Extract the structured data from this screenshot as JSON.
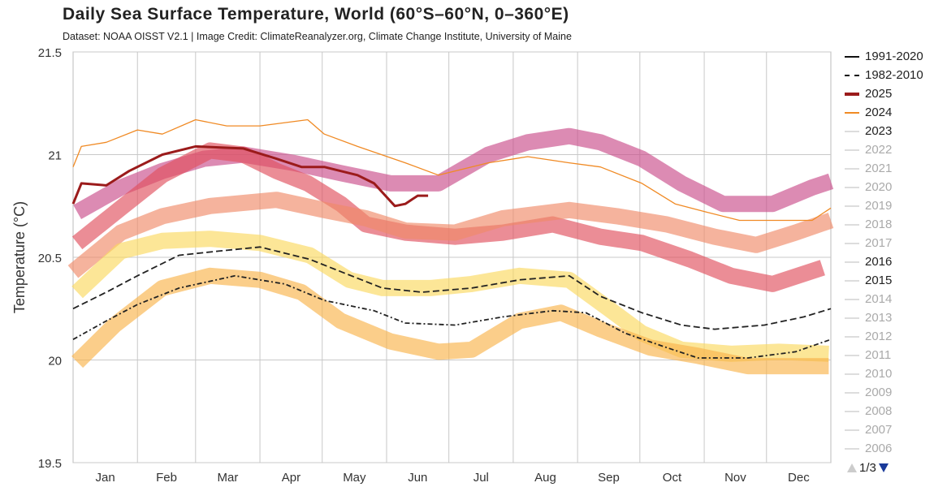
{
  "chart_data": {
    "type": "line",
    "title": "Daily Sea Surface Temperature, World (60°S–60°N, 0–360°E)",
    "subtitle": "Dataset: NOAA OISST V2.1 | Image Credit: ClimateReanalyzer.org, Climate Change Institute, University of Maine",
    "xlabel": "",
    "ylabel": "Temperature (°C)",
    "xlim": [
      0,
      365
    ],
    "ylim": [
      19.5,
      21.5
    ],
    "yticks": [
      "21.5",
      "21",
      "20.5",
      "20",
      "19.5"
    ],
    "ytick_values": [
      21.5,
      21,
      20.5,
      20,
      19.5
    ],
    "months": [
      "Jan",
      "Feb",
      "Mar",
      "Apr",
      "May",
      "Jun",
      "Jul",
      "Aug",
      "Sep",
      "Oct",
      "Nov",
      "Dec"
    ],
    "grid": true,
    "legend_position": "right",
    "series": [
      {
        "name": "2025",
        "color": "#9b1b1b",
        "width": 3,
        "dash": "",
        "points": [
          [
            0,
            20.76
          ],
          [
            4,
            20.86
          ],
          [
            16,
            20.85
          ],
          [
            27,
            20.92
          ],
          [
            43,
            21.0
          ],
          [
            59,
            21.04
          ],
          [
            82,
            21.03
          ],
          [
            98,
            20.98
          ],
          [
            110,
            20.94
          ],
          [
            121,
            20.94
          ],
          [
            137,
            20.9
          ],
          [
            145,
            20.86
          ],
          [
            155,
            20.75
          ],
          [
            160,
            20.76
          ],
          [
            166,
            20.8
          ],
          [
            171,
            20.8
          ]
        ]
      },
      {
        "name": "2024",
        "color": "#f08a24",
        "width": 1.3,
        "dash": "",
        "points": [
          [
            0,
            20.94
          ],
          [
            4,
            21.04
          ],
          [
            16,
            21.06
          ],
          [
            31,
            21.12
          ],
          [
            43,
            21.1
          ],
          [
            59,
            21.17
          ],
          [
            74,
            21.14
          ],
          [
            90,
            21.14
          ],
          [
            113,
            21.17
          ],
          [
            121,
            21.1
          ],
          [
            137,
            21.04
          ],
          [
            160,
            20.96
          ],
          [
            176,
            20.9
          ],
          [
            200,
            20.96
          ],
          [
            219,
            20.99
          ],
          [
            239,
            20.96
          ],
          [
            254,
            20.94
          ],
          [
            274,
            20.86
          ],
          [
            290,
            20.76
          ],
          [
            305,
            20.72
          ],
          [
            321,
            20.68
          ],
          [
            340,
            20.68
          ],
          [
            356,
            20.68
          ],
          [
            365,
            20.74
          ]
        ]
      },
      {
        "name": "1991-2020",
        "color": "#222222",
        "width": 1.8,
        "dash": "8,4",
        "points": [
          [
            0,
            20.25
          ],
          [
            16,
            20.33
          ],
          [
            31,
            20.41
          ],
          [
            51,
            20.51
          ],
          [
            70,
            20.53
          ],
          [
            90,
            20.55
          ],
          [
            114,
            20.49
          ],
          [
            129,
            20.43
          ],
          [
            149,
            20.35
          ],
          [
            168,
            20.33
          ],
          [
            192,
            20.35
          ],
          [
            215,
            20.39
          ],
          [
            239,
            20.41
          ],
          [
            254,
            20.31
          ],
          [
            274,
            20.23
          ],
          [
            293,
            20.17
          ],
          [
            309,
            20.15
          ],
          [
            333,
            20.17
          ],
          [
            352,
            20.21
          ],
          [
            365,
            20.25
          ]
        ]
      },
      {
        "name": "1982-2010",
        "color": "#222222",
        "width": 1.8,
        "dash": "6,3,2,3",
        "points": [
          [
            0,
            20.1
          ],
          [
            16,
            20.19
          ],
          [
            31,
            20.27
          ],
          [
            51,
            20.35
          ],
          [
            78,
            20.41
          ],
          [
            102,
            20.37
          ],
          [
            121,
            20.29
          ],
          [
            145,
            20.24
          ],
          [
            160,
            20.18
          ],
          [
            184,
            20.17
          ],
          [
            207,
            20.21
          ],
          [
            231,
            20.24
          ],
          [
            247,
            20.23
          ],
          [
            266,
            20.13
          ],
          [
            286,
            20.06
          ],
          [
            301,
            20.01
          ],
          [
            325,
            20.01
          ],
          [
            348,
            20.04
          ],
          [
            365,
            20.1
          ]
        ]
      }
    ],
    "highlight_bands": [
      {
        "color": "#c94d8a",
        "points": [
          [
            2,
            20.72
          ],
          [
            23,
            20.84
          ],
          [
            43,
            20.92
          ],
          [
            63,
            20.98
          ],
          [
            82,
            21.0
          ],
          [
            106,
            20.96
          ],
          [
            129,
            20.91
          ],
          [
            153,
            20.86
          ],
          [
            176,
            20.86
          ],
          [
            200,
            21.0
          ],
          [
            219,
            21.06
          ],
          [
            239,
            21.09
          ],
          [
            254,
            21.06
          ],
          [
            274,
            20.98
          ],
          [
            293,
            20.86
          ],
          [
            313,
            20.76
          ],
          [
            337,
            20.76
          ],
          [
            356,
            20.84
          ],
          [
            365,
            20.87
          ]
        ]
      },
      {
        "color": "#e0505e",
        "points": [
          [
            2,
            20.57
          ],
          [
            23,
            20.74
          ],
          [
            43,
            20.9
          ],
          [
            66,
            21.02
          ],
          [
            82,
            21.0
          ],
          [
            98,
            20.92
          ],
          [
            113,
            20.86
          ],
          [
            129,
            20.76
          ],
          [
            141,
            20.66
          ],
          [
            160,
            20.62
          ],
          [
            184,
            20.6
          ],
          [
            207,
            20.62
          ],
          [
            231,
            20.66
          ],
          [
            254,
            20.6
          ],
          [
            274,
            20.57
          ],
          [
            297,
            20.49
          ],
          [
            317,
            20.41
          ],
          [
            337,
            20.37
          ],
          [
            361,
            20.45
          ]
        ]
      },
      {
        "color": "#f08a68",
        "points": [
          [
            0,
            20.43
          ],
          [
            23,
            20.62
          ],
          [
            43,
            20.7
          ],
          [
            66,
            20.75
          ],
          [
            98,
            20.78
          ],
          [
            121,
            20.73
          ],
          [
            141,
            20.69
          ],
          [
            160,
            20.63
          ],
          [
            184,
            20.62
          ],
          [
            207,
            20.69
          ],
          [
            239,
            20.73
          ],
          [
            262,
            20.7
          ],
          [
            286,
            20.66
          ],
          [
            309,
            20.6
          ],
          [
            329,
            20.56
          ],
          [
            348,
            20.62
          ],
          [
            365,
            20.68
          ]
        ]
      },
      {
        "color": "#fbd860",
        "points": [
          [
            2,
            20.33
          ],
          [
            23,
            20.53
          ],
          [
            43,
            20.58
          ],
          [
            66,
            20.59
          ],
          [
            90,
            20.57
          ],
          [
            114,
            20.51
          ],
          [
            133,
            20.39
          ],
          [
            149,
            20.35
          ],
          [
            172,
            20.35
          ],
          [
            192,
            20.37
          ],
          [
            215,
            20.41
          ],
          [
            239,
            20.39
          ],
          [
            258,
            20.25
          ],
          [
            274,
            20.13
          ],
          [
            293,
            20.05
          ],
          [
            317,
            20.03
          ],
          [
            340,
            20.04
          ],
          [
            364,
            20.03
          ]
        ]
      },
      {
        "color": "#f9b34c",
        "points": [
          [
            2,
            19.99
          ],
          [
            20,
            20.17
          ],
          [
            43,
            20.35
          ],
          [
            66,
            20.41
          ],
          [
            90,
            20.39
          ],
          [
            110,
            20.33
          ],
          [
            129,
            20.19
          ],
          [
            153,
            20.09
          ],
          [
            176,
            20.04
          ],
          [
            192,
            20.05
          ],
          [
            215,
            20.19
          ],
          [
            235,
            20.23
          ],
          [
            254,
            20.15
          ],
          [
            278,
            20.06
          ],
          [
            301,
            20.02
          ],
          [
            325,
            19.97
          ],
          [
            344,
            19.97
          ],
          [
            364,
            19.97
          ]
        ]
      }
    ]
  },
  "legend": {
    "items": [
      {
        "label": "1991-2020",
        "color": "#111111",
        "text_color": "#222222",
        "style": "solid"
      },
      {
        "label": "1982-2010",
        "color": "#111111",
        "text_color": "#222222",
        "style": "dashdot"
      },
      {
        "label": "2025",
        "color": "#9b1b1b",
        "text_color": "#222222",
        "style": "thick"
      },
      {
        "label": "2024",
        "color": "#f08a24",
        "text_color": "#222222",
        "style": "solid"
      },
      {
        "label": "2023",
        "color": "#dddddd",
        "text_color": "#222222",
        "style": "solid"
      },
      {
        "label": "2022",
        "color": "#dddddd",
        "text_color": "#aaaaaa",
        "style": "solid"
      },
      {
        "label": "2021",
        "color": "#dddddd",
        "text_color": "#aaaaaa",
        "style": "solid"
      },
      {
        "label": "2020",
        "color": "#dddddd",
        "text_color": "#aaaaaa",
        "style": "solid"
      },
      {
        "label": "2019",
        "color": "#dddddd",
        "text_color": "#aaaaaa",
        "style": "solid"
      },
      {
        "label": "2018",
        "color": "#dddddd",
        "text_color": "#aaaaaa",
        "style": "solid"
      },
      {
        "label": "2017",
        "color": "#dddddd",
        "text_color": "#aaaaaa",
        "style": "solid"
      },
      {
        "label": "2016",
        "color": "#dddddd",
        "text_color": "#222222",
        "style": "solid"
      },
      {
        "label": "2015",
        "color": "#dddddd",
        "text_color": "#222222",
        "style": "solid"
      },
      {
        "label": "2014",
        "color": "#dddddd",
        "text_color": "#aaaaaa",
        "style": "solid"
      },
      {
        "label": "2013",
        "color": "#dddddd",
        "text_color": "#aaaaaa",
        "style": "solid"
      },
      {
        "label": "2012",
        "color": "#dddddd",
        "text_color": "#aaaaaa",
        "style": "solid"
      },
      {
        "label": "2011",
        "color": "#dddddd",
        "text_color": "#aaaaaa",
        "style": "solid"
      },
      {
        "label": "2010",
        "color": "#dddddd",
        "text_color": "#aaaaaa",
        "style": "solid"
      },
      {
        "label": "2009",
        "color": "#dddddd",
        "text_color": "#aaaaaa",
        "style": "solid"
      },
      {
        "label": "2008",
        "color": "#dddddd",
        "text_color": "#aaaaaa",
        "style": "solid"
      },
      {
        "label": "2007",
        "color": "#dddddd",
        "text_color": "#aaaaaa",
        "style": "solid"
      },
      {
        "label": "2006",
        "color": "#dddddd",
        "text_color": "#aaaaaa",
        "style": "solid"
      }
    ],
    "page": "1/3"
  }
}
